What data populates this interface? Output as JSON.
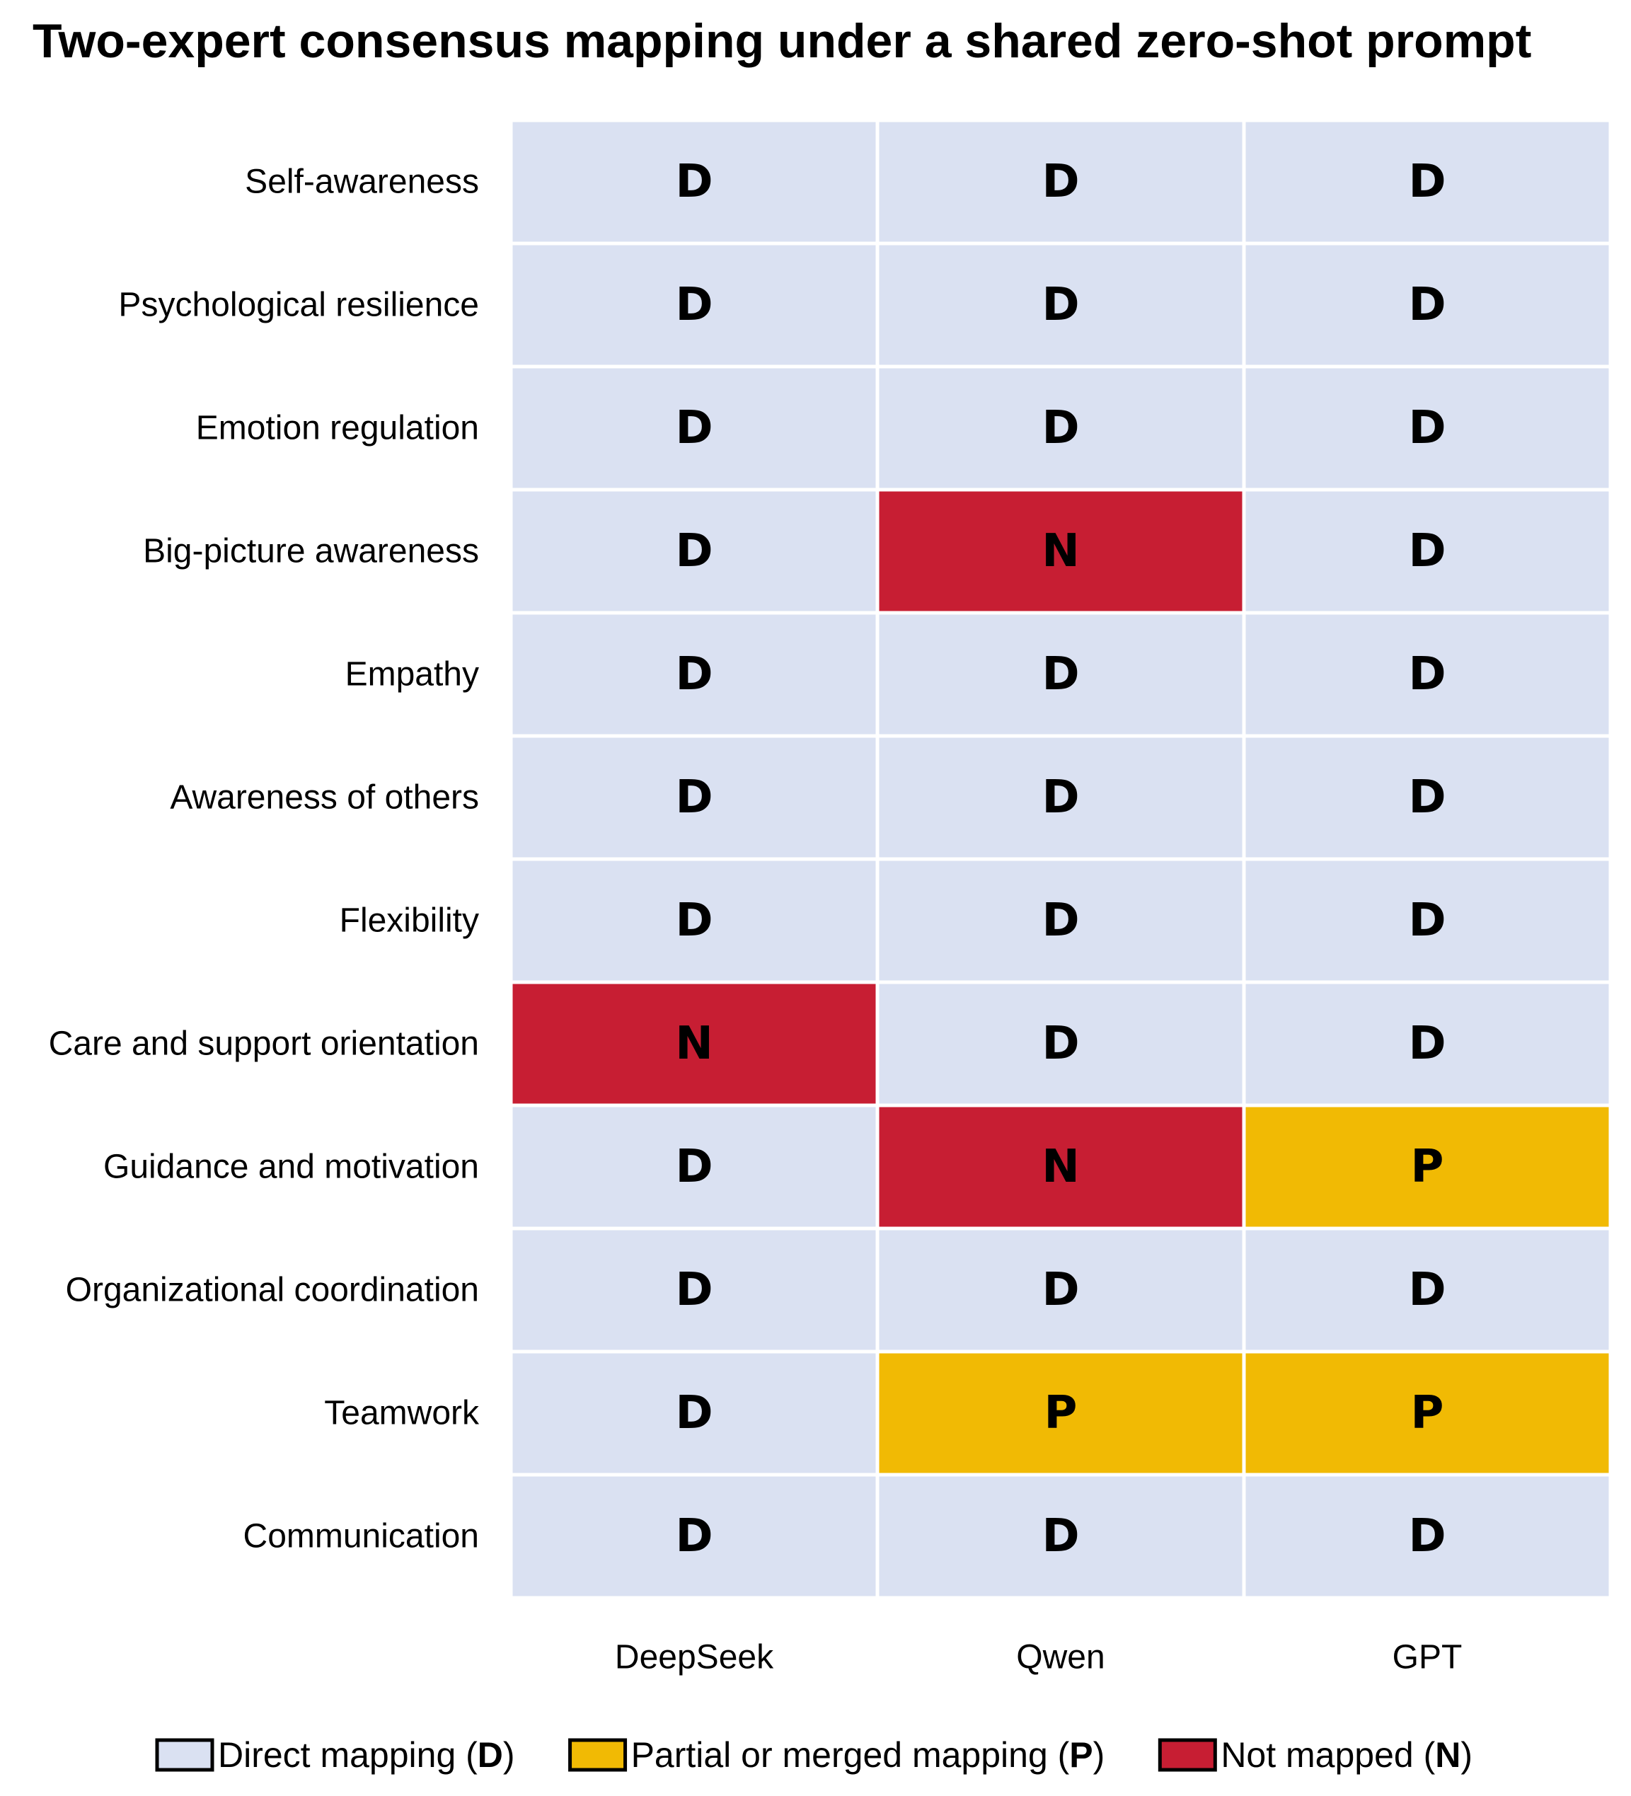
{
  "title": "Two-expert consensus mapping under a shared zero-shot prompt",
  "colors": {
    "D": "#dae1f2",
    "P": "#f1ba04",
    "N": "#c71e33",
    "gridline": "#ffffff",
    "legend_border": "#000000"
  },
  "chart_data": {
    "type": "heatmap",
    "title": "Two-expert consensus mapping under a shared zero-shot prompt",
    "columns": [
      "DeepSeek",
      "Qwen",
      "GPT"
    ],
    "rows": [
      "Self-awareness",
      "Psychological resilience",
      "Emotion regulation",
      "Big-picture awareness",
      "Empathy",
      "Awareness of others",
      "Flexibility",
      "Care and support orientation",
      "Guidance and motivation",
      "Organizational coordination",
      "Teamwork",
      "Communication"
    ],
    "values": [
      [
        "D",
        "D",
        "D"
      ],
      [
        "D",
        "D",
        "D"
      ],
      [
        "D",
        "D",
        "D"
      ],
      [
        "D",
        "N",
        "D"
      ],
      [
        "D",
        "D",
        "D"
      ],
      [
        "D",
        "D",
        "D"
      ],
      [
        "D",
        "D",
        "D"
      ],
      [
        "N",
        "D",
        "D"
      ],
      [
        "D",
        "N",
        "P"
      ],
      [
        "D",
        "D",
        "D"
      ],
      [
        "D",
        "P",
        "P"
      ],
      [
        "D",
        "D",
        "D"
      ]
    ],
    "legend": {
      "placement": "bottom",
      "items": [
        {
          "code": "D",
          "label": "Direct mapping (",
          "suffix": ")"
        },
        {
          "code": "P",
          "label": "Partial or merged mapping (",
          "suffix": ")"
        },
        {
          "code": "N",
          "label": "Not mapped (",
          "suffix": ")"
        }
      ]
    }
  }
}
